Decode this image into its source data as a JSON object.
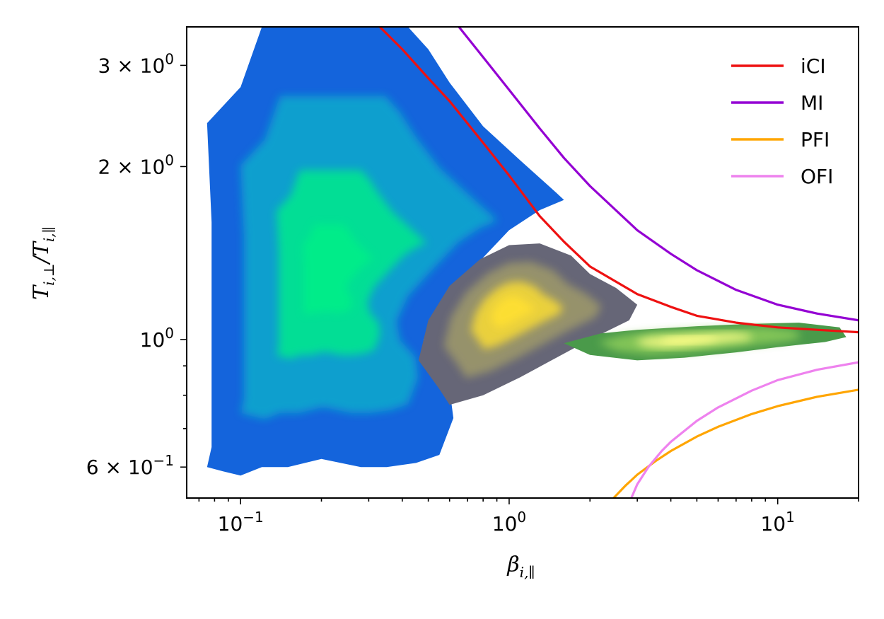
{
  "chart_data": {
    "type": "scatter",
    "title": "",
    "xlabel": "β_{i,∥}",
    "ylabel": "T_{i,⊥}/T_{i,∥}",
    "xscale": "log",
    "yscale": "log",
    "xlim": [
      0.063,
      20
    ],
    "ylim": [
      0.53,
      3.5
    ],
    "grid": false,
    "legend_position": "top-right",
    "xticks": [
      {
        "value": 0.1,
        "base": "10",
        "exp": "−1"
      },
      {
        "value": 1,
        "base": "10",
        "exp": "0"
      },
      {
        "value": 10,
        "base": "10",
        "exp": "1"
      }
    ],
    "yticks": [
      {
        "value": 0.6,
        "mant": "6 × 10",
        "exp": "−1"
      },
      {
        "value": 1,
        "mant": "10",
        "exp": "0"
      },
      {
        "value": 2,
        "mant": "2 × 10",
        "exp": "0"
      },
      {
        "value": 3,
        "mant": "3 × 10",
        "exp": "0"
      }
    ],
    "series": [
      {
        "name": "iCI",
        "kind": "line",
        "color": "#ee1111",
        "x": [
          0.33,
          0.4,
          0.5,
          0.6,
          0.8,
          1.0,
          1.3,
          1.6,
          2.0,
          3.0,
          4.0,
          5.0,
          7.0,
          10.0,
          14.0,
          20.0
        ],
        "y": [
          3.5,
          3.2,
          2.85,
          2.6,
          2.2,
          1.93,
          1.64,
          1.48,
          1.34,
          1.2,
          1.14,
          1.1,
          1.07,
          1.05,
          1.04,
          1.03
        ]
      },
      {
        "name": "MI",
        "kind": "line",
        "color": "#9400d3",
        "x": [
          0.65,
          0.8,
          1.0,
          1.3,
          1.6,
          2.0,
          3.0,
          4.0,
          5.0,
          7.0,
          10.0,
          14.0,
          20.0
        ],
        "y": [
          3.5,
          3.1,
          2.72,
          2.33,
          2.07,
          1.85,
          1.55,
          1.41,
          1.32,
          1.22,
          1.15,
          1.11,
          1.08
        ]
      },
      {
        "name": "PFI",
        "kind": "line",
        "color": "#ffa500",
        "x": [
          2.45,
          2.7,
          3.0,
          3.5,
          4.0,
          5.0,
          6.0,
          8.0,
          10.0,
          14.0,
          20.0
        ],
        "y": [
          0.53,
          0.556,
          0.582,
          0.614,
          0.64,
          0.678,
          0.705,
          0.742,
          0.766,
          0.795,
          0.818
        ]
      },
      {
        "name": "OFI",
        "kind": "line",
        "color": "#ee82ee",
        "x": [
          2.85,
          3.0,
          3.3,
          3.7,
          4.0,
          5.0,
          6.0,
          8.0,
          10.0,
          14.0,
          20.0
        ],
        "y": [
          0.53,
          0.56,
          0.6,
          0.64,
          0.664,
          0.722,
          0.762,
          0.815,
          0.85,
          0.886,
          0.913
        ]
      }
    ],
    "distributions": [
      {
        "kind": "density",
        "colors": [
          "#1464dc",
          "#11aacc",
          "#00ee88"
        ],
        "peak": [
          0.21,
          1.3
        ],
        "outline": [
          [
            0.075,
            0.6
          ],
          [
            0.086,
            0.59
          ],
          [
            0.1,
            0.58
          ],
          [
            0.12,
            0.6
          ],
          [
            0.15,
            0.6
          ],
          [
            0.2,
            0.62
          ],
          [
            0.28,
            0.6
          ],
          [
            0.35,
            0.6
          ],
          [
            0.45,
            0.61
          ],
          [
            0.55,
            0.63
          ],
          [
            0.62,
            0.73
          ],
          [
            0.6,
            0.82
          ],
          [
            0.5,
            0.9
          ],
          [
            0.48,
            1.0
          ],
          [
            0.55,
            1.15
          ],
          [
            0.7,
            1.3
          ],
          [
            1.0,
            1.55
          ],
          [
            1.3,
            1.68
          ],
          [
            1.6,
            1.75
          ],
          [
            1.5,
            1.8
          ],
          [
            1.1,
            2.05
          ],
          [
            0.8,
            2.35
          ],
          [
            0.6,
            2.8
          ],
          [
            0.5,
            3.2
          ],
          [
            0.42,
            3.5
          ],
          [
            0.12,
            3.5
          ],
          [
            0.1,
            2.75
          ],
          [
            0.075,
            2.38
          ],
          [
            0.078,
            1.6
          ],
          [
            0.078,
            0.65
          ]
        ]
      },
      {
        "kind": "density",
        "colors": [
          "#666677",
          "#9f9a6a",
          "#ffe033"
        ],
        "peak": [
          1.0,
          1.13
        ],
        "outline": [
          [
            0.46,
            0.92
          ],
          [
            0.55,
            0.82
          ],
          [
            0.6,
            0.77
          ],
          [
            0.8,
            0.8
          ],
          [
            1.1,
            0.86
          ],
          [
            1.5,
            0.93
          ],
          [
            2.0,
            1.0
          ],
          [
            2.8,
            1.08
          ],
          [
            3.0,
            1.15
          ],
          [
            2.5,
            1.23
          ],
          [
            2.0,
            1.3
          ],
          [
            1.7,
            1.4
          ],
          [
            1.3,
            1.47
          ],
          [
            1.0,
            1.46
          ],
          [
            0.78,
            1.38
          ],
          [
            0.6,
            1.24
          ],
          [
            0.5,
            1.08
          ]
        ]
      },
      {
        "kind": "density",
        "colors": [
          "#4a9a4a",
          "#8ccc5a",
          "#ffff88"
        ],
        "peak": [
          4.5,
          1.0
        ],
        "outline": [
          [
            1.6,
            0.985
          ],
          [
            2.0,
            0.94
          ],
          [
            3.0,
            0.92
          ],
          [
            4.5,
            0.93
          ],
          [
            7.0,
            0.95
          ],
          [
            10.0,
            0.97
          ],
          [
            15.0,
            0.99
          ],
          [
            18.0,
            1.01
          ],
          [
            17.0,
            1.05
          ],
          [
            12.0,
            1.07
          ],
          [
            8.0,
            1.065
          ],
          [
            5.0,
            1.055
          ],
          [
            3.0,
            1.04
          ],
          [
            2.2,
            1.025
          ],
          [
            1.8,
            1.0
          ]
        ]
      }
    ]
  }
}
